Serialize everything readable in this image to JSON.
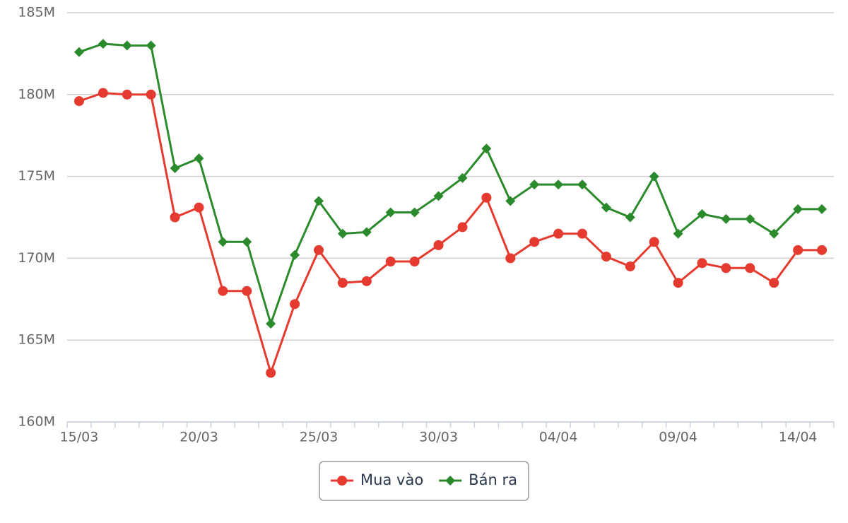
{
  "chart_data": {
    "type": "line",
    "categories": [
      "15/03",
      null,
      null,
      null,
      null,
      "20/03",
      null,
      null,
      null,
      null,
      "25/03",
      null,
      null,
      null,
      null,
      "30/03",
      null,
      null,
      null,
      null,
      "04/04",
      null,
      null,
      null,
      null,
      "09/04",
      null,
      null,
      null,
      null,
      "14/04",
      null
    ],
    "series": [
      {
        "name": "Mua vào",
        "color": "#e53a2f",
        "marker": "circle",
        "values": [
          179.6,
          180.1,
          180.0,
          180.0,
          172.5,
          173.1,
          168.0,
          168.0,
          163.0,
          167.2,
          170.5,
          168.5,
          168.6,
          169.8,
          169.8,
          170.8,
          171.9,
          173.7,
          170.0,
          171.0,
          171.5,
          171.5,
          170.1,
          169.5,
          171.0,
          168.5,
          169.7,
          169.4,
          169.4,
          168.5,
          170.5,
          170.5
        ]
      },
      {
        "name": "Bán ra",
        "color": "#2b8a2b",
        "marker": "diamond",
        "values": [
          182.6,
          183.1,
          183.0,
          183.0,
          175.5,
          176.1,
          171.0,
          171.0,
          166.0,
          170.2,
          173.5,
          171.5,
          171.6,
          172.8,
          172.8,
          173.8,
          174.9,
          176.7,
          173.5,
          174.5,
          174.5,
          174.5,
          173.1,
          172.5,
          175.0,
          171.5,
          172.7,
          172.4,
          172.4,
          171.5,
          173.0,
          173.0
        ]
      }
    ],
    "ylim": [
      160,
      185
    ],
    "yticks": [
      {
        "value": 160,
        "label": "160M"
      },
      {
        "value": 165,
        "label": "165M"
      },
      {
        "value": 170,
        "label": "170M"
      },
      {
        "value": 175,
        "label": "175M"
      },
      {
        "value": 180,
        "label": "180M"
      },
      {
        "value": 185,
        "label": "185M"
      }
    ],
    "grid": true,
    "legend": "bottom"
  }
}
